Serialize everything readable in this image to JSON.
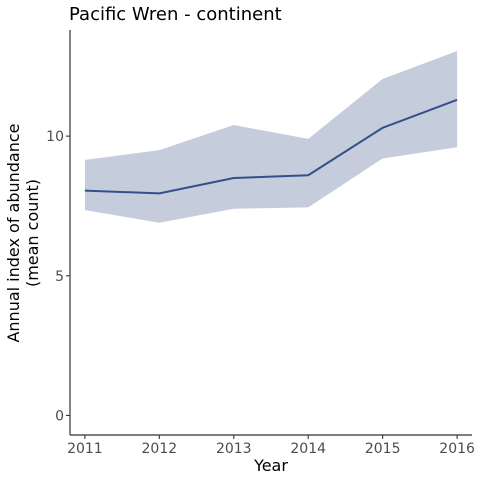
{
  "chart_data": {
    "type": "line",
    "title": "Pacific Wren - continent",
    "xlabel": "Year",
    "ylabel_lines": [
      "Annual index of abundance",
      "(mean count)"
    ],
    "x": [
      2011,
      2012,
      2013,
      2014,
      2015,
      2016
    ],
    "xlim": [
      2010.8,
      2016.2
    ],
    "ylim": [
      -0.7,
      13.8
    ],
    "yticks": [
      0,
      5,
      10
    ],
    "grid": false,
    "series": [
      {
        "values": [
          8.05,
          7.95,
          8.5,
          8.6,
          10.3,
          11.3
        ],
        "lower": [
          7.35,
          6.9,
          7.4,
          7.45,
          9.2,
          9.6
        ],
        "upper": [
          9.15,
          9.5,
          10.4,
          9.9,
          12.05,
          13.05
        ],
        "line_color": "#34508a",
        "band_color": "#c5cddd"
      }
    ]
  }
}
